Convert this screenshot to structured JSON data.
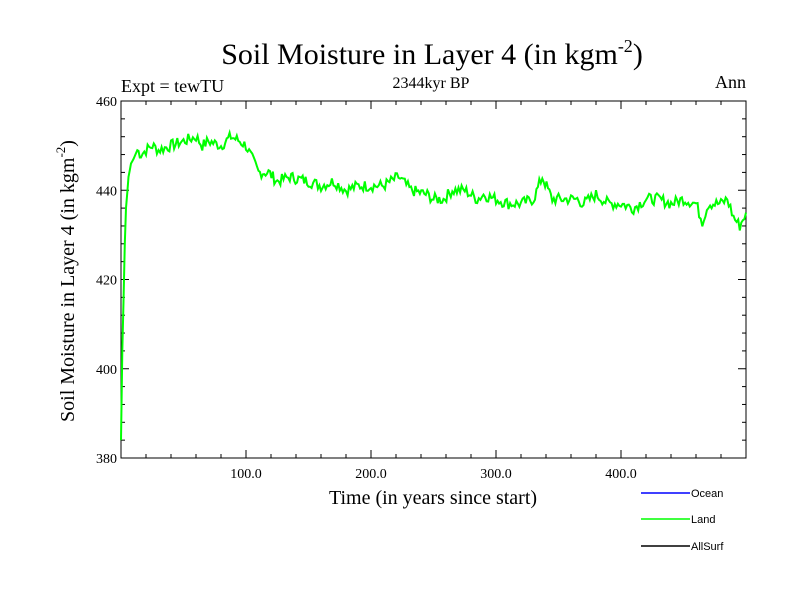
{
  "chart_data": {
    "type": "line",
    "title_main": "Soil Moisture in Layer 4 (in kgm",
    "title_sup": "-2",
    "title_close": ")",
    "subtitle": "2344kyr BP",
    "left_label": "Expt = tewTU",
    "right_label": "Ann",
    "xlabel": "Time (in years since start)",
    "ylabel_main": "Soil Moisture in Layer 4 (in kgm",
    "ylabel_sup": "-2",
    "ylabel_close": ")",
    "xlim": [
      0,
      500
    ],
    "ylim": [
      380,
      460
    ],
    "x_ticks": [
      100,
      200,
      300,
      400
    ],
    "x_tick_labels": [
      "100.0",
      "200.0",
      "300.0",
      "400.0"
    ],
    "y_ticks": [
      380,
      400,
      420,
      440,
      460
    ],
    "y_tick_labels": [
      "380",
      "400",
      "420",
      "440",
      "460"
    ],
    "legend": [
      {
        "name": "Ocean",
        "color": "#0000ff"
      },
      {
        "name": "Land",
        "color": "#00ff00"
      },
      {
        "name": "AllSurf",
        "color": "#000000"
      }
    ],
    "series": [
      {
        "name": "Land",
        "color": "#00ff00",
        "x": [
          0,
          1,
          2,
          3,
          4,
          6,
          8,
          10,
          13,
          16,
          20,
          25,
          30,
          40,
          50,
          60,
          65,
          70,
          80,
          88,
          95,
          100,
          110,
          118,
          125,
          135,
          150,
          160,
          170,
          180,
          190,
          200,
          210,
          222,
          232,
          245,
          250,
          258,
          265,
          275,
          285,
          290,
          300,
          310,
          320,
          330,
          337,
          345,
          355,
          365,
          370,
          380,
          390,
          400,
          410,
          420,
          430,
          440,
          450,
          460,
          465,
          470,
          480,
          485,
          490,
          495,
          500
        ],
        "y": [
          384,
          404,
          415,
          428,
          436,
          443,
          446,
          447,
          449,
          448,
          449,
          450,
          449,
          450,
          451,
          452,
          450,
          451,
          450,
          452,
          451,
          450,
          444,
          444,
          442,
          443,
          442,
          441,
          442,
          440,
          441,
          441,
          441,
          443,
          440,
          439,
          438,
          438,
          440,
          440,
          438,
          439,
          438,
          437,
          437,
          438,
          443,
          438,
          438,
          438,
          437,
          439,
          437,
          437,
          436,
          438,
          438,
          437,
          438,
          437,
          433,
          437,
          437,
          438,
          434,
          432,
          435
        ]
      }
    ]
  }
}
